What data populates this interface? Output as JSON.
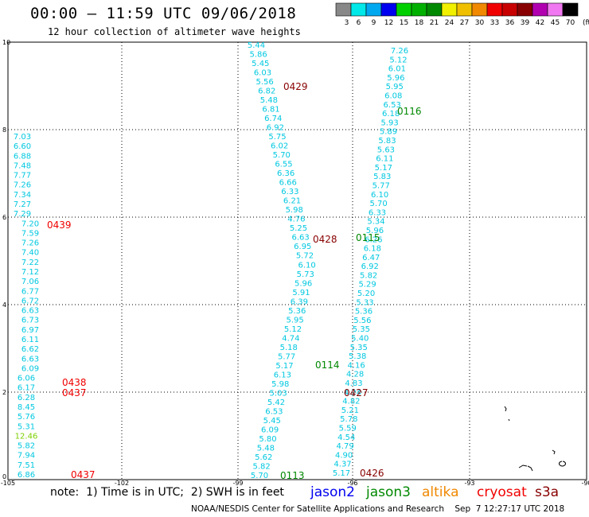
{
  "header": {
    "title": "00:00 – 11:59 UTC 09/06/2018",
    "subtitle": "12 hour collection of altimeter wave heights"
  },
  "color_scale": {
    "unit": "(ft)",
    "bins": [
      {
        "label": "3",
        "color": "#888888"
      },
      {
        "label": "6",
        "color": "#00e8e8"
      },
      {
        "label": "9",
        "color": "#00a8f0"
      },
      {
        "label": "12",
        "color": "#0000f0"
      },
      {
        "label": "15",
        "color": "#00d000"
      },
      {
        "label": "18",
        "color": "#00b000"
      },
      {
        "label": "21",
        "color": "#008800"
      },
      {
        "label": "24",
        "color": "#f0f000"
      },
      {
        "label": "27",
        "color": "#f0c000"
      },
      {
        "label": "30",
        "color": "#f08800"
      },
      {
        "label": "33",
        "color": "#f00000"
      },
      {
        "label": "36",
        "color": "#c80000"
      },
      {
        "label": "39",
        "color": "#880000"
      },
      {
        "label": "42",
        "color": "#b000b0"
      },
      {
        "label": "45",
        "color": "#f078f0"
      },
      {
        "label": "70",
        "color": "#000000"
      }
    ]
  },
  "axes": {
    "x_ticks": [
      "-105",
      "-102",
      "-99",
      "-96",
      "-93",
      "-90"
    ],
    "y_ticks": [
      "0",
      "2",
      "4",
      "6",
      "8",
      "10"
    ]
  },
  "tracks": [
    {
      "values": [
        "7.03",
        "6.60",
        "6.88",
        "7.48",
        "7.77",
        "7.26",
        "7.34",
        "7.27",
        "7.29",
        "7.20",
        "7.59",
        "7.26",
        "7.40",
        "7.22",
        "7.12",
        "7.06",
        "6.77",
        "6.72",
        "6.63",
        "6.73",
        "6.97",
        "6.11",
        "6.62",
        "6.63",
        "6.09",
        "6.06",
        "6.17",
        "6.28",
        "8.45",
        "5.76",
        "5.31",
        "12.46",
        "5.82",
        "7.94",
        "7.51",
        "6.86"
      ]
    },
    {
      "values": [
        "5.44",
        "5.86",
        "5.45",
        "6.03",
        "5.56",
        "6.82",
        "5.48",
        "6.81",
        "6.74",
        "6.92",
        "5.75",
        "6.02",
        "5.70",
        "6.55",
        "6.36",
        "6.66",
        "6.33",
        "6.21",
        "5.98",
        "4.76",
        "5.25",
        "6.63",
        "6.95",
        "5.72",
        "6.10",
        "5.73",
        "5.96",
        "5.91",
        "6.39",
        "5.36",
        "5.95",
        "5.12",
        "4.74",
        "5.18",
        "5.77",
        "5.17",
        "6.13",
        "5.98",
        "5.03",
        "5.42",
        "6.53",
        "5.45",
        "6.09",
        "5.80",
        "5.48",
        "5.62",
        "5.82",
        "5.70"
      ]
    },
    {
      "values": [
        "7.26",
        "5.12",
        "6.01",
        "5.96",
        "5.95",
        "6.08",
        "6.53",
        "6.18",
        "5.93",
        "5.89",
        "5.83",
        "5.63",
        "6.11",
        "5.17",
        "5.83",
        "5.77",
        "6.10",
        "5.70",
        "6.33",
        "5.34",
        "5.96",
        "6.26",
        "6.18",
        "6.47",
        "6.92",
        "5.82",
        "5.29",
        "5.20",
        "5.33",
        "5.36",
        "5.56",
        "5.35",
        "5.40",
        "5.35",
        "5.38",
        "4.16",
        "4.28",
        "4.83",
        "4.24",
        "4.82",
        "5.21",
        "5.78",
        "5.59",
        "4.54",
        "4.79",
        "4.90",
        "4.37",
        "5.17"
      ]
    }
  ],
  "pass_labels": [
    {
      "text": "0429",
      "color": "#880000"
    },
    {
      "text": "0116",
      "color": "#008800"
    },
    {
      "text": "0439",
      "color": "#f00000"
    },
    {
      "text": "0428",
      "color": "#880000"
    },
    {
      "text": "0115",
      "color": "#008800"
    },
    {
      "text": "0114",
      "color": "#008800"
    },
    {
      "text": "0438",
      "color": "#f00000"
    },
    {
      "text": "0437",
      "color": "#f00000"
    },
    {
      "text": "0427",
      "color": "#880000"
    },
    {
      "text": "0437",
      "color": "#f00000"
    },
    {
      "text": "0113",
      "color": "#008800"
    },
    {
      "text": "0426",
      "color": "#880000"
    }
  ],
  "footer": {
    "note": "note:  1) Time is in UTC;  2) SWH is in feet",
    "satellites": [
      {
        "name": "jason2",
        "color": "#0000f0"
      },
      {
        "name": "jason3",
        "color": "#008800"
      },
      {
        "name": "altika",
        "color": "#f08800"
      },
      {
        "name": "cryosat",
        "color": "#f00000"
      },
      {
        "name": "s3a",
        "color": "#880000"
      }
    ],
    "credit": "NOAA/NESDIS Center for Satellite Applications and Research    Sep  7 12:27:17 UTC 2018"
  }
}
